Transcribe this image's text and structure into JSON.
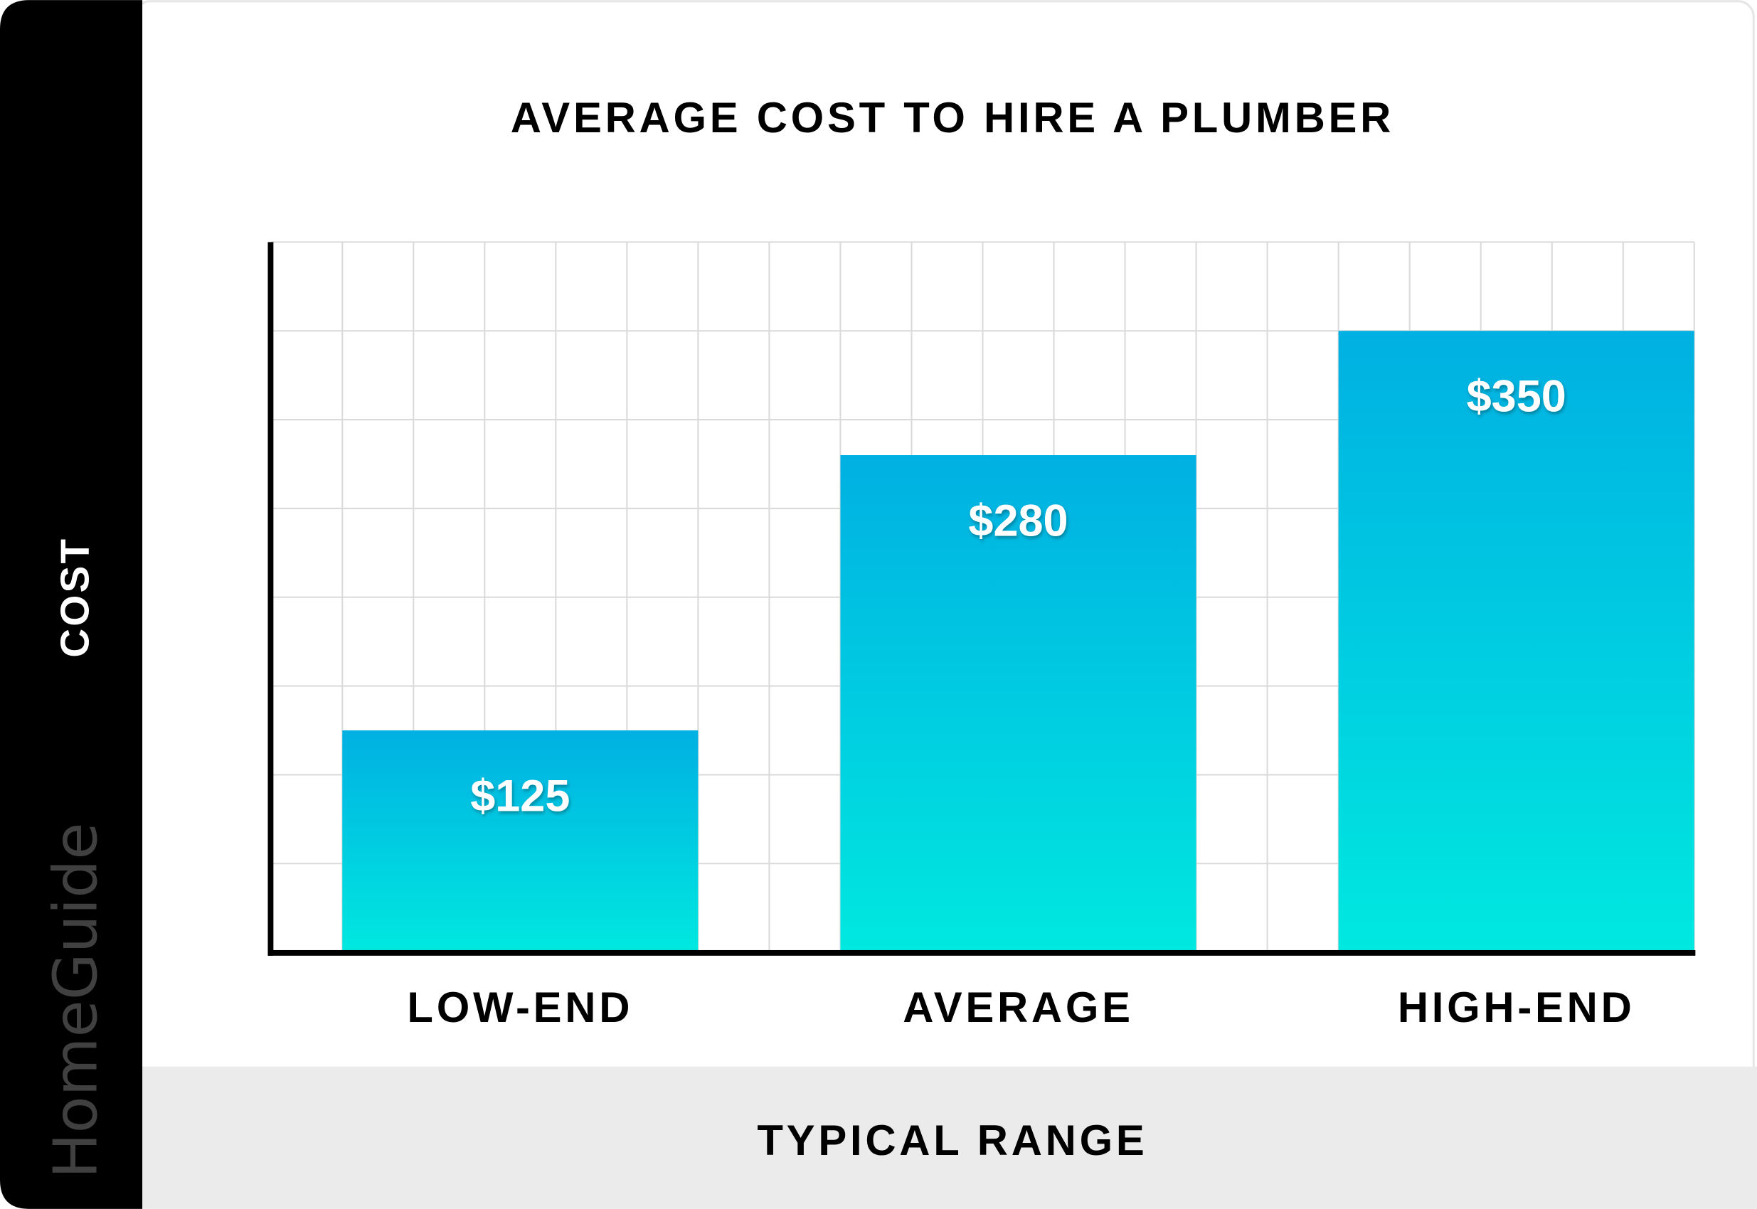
{
  "brand": {
    "logo_text": "HomeGuide",
    "logo_color": "#404040"
  },
  "chart_data": {
    "type": "bar",
    "title": "AVERAGE COST TO HIRE A PLUMBER",
    "xlabel": "TYPICAL RANGE",
    "ylabel": "COST",
    "categories": [
      "LOW-END",
      "AVERAGE",
      "HIGH-END"
    ],
    "values": [
      125,
      280,
      350
    ],
    "data_labels": [
      "$125",
      "$280",
      "$350"
    ],
    "ylim": [
      0,
      400
    ],
    "grid": true,
    "legend": "none",
    "colors": {
      "bar_top": "#00B0E2",
      "bar_bottom": "#00E8E0",
      "grid": "#DADADA",
      "axis": "#000000",
      "sidebar": "#000000",
      "footer": "#EBEBEB"
    }
  }
}
